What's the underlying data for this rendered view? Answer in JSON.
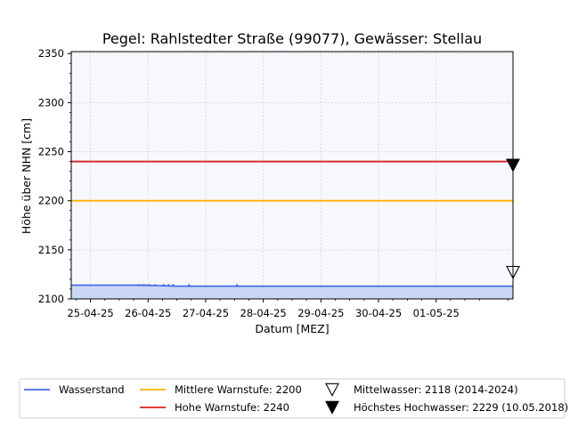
{
  "chart_data": {
    "type": "line",
    "title": "Pegel:  Rahlstedter Straße (99077), Gewässer:  Stellau",
    "xlabel": "Datum [MEZ]",
    "ylabel": "Höhe über NHN [cm]",
    "ylim": [
      2100,
      2352
    ],
    "xlim": [
      "2025-04-24T16:00",
      "2025-05-02T08:00"
    ],
    "yticks": [
      2100,
      2150,
      2200,
      2250,
      2300,
      2350
    ],
    "xticks": [
      {
        "date": "2025-04-25",
        "label": "25-04-25"
      },
      {
        "date": "2025-04-26",
        "label": "26-04-25"
      },
      {
        "date": "2025-04-27",
        "label": "27-04-25"
      },
      {
        "date": "2025-04-28",
        "label": "28-04-25"
      },
      {
        "date": "2025-04-29",
        "label": "29-04-25"
      },
      {
        "date": "2025-04-30",
        "label": "30-04-25"
      },
      {
        "date": "2025-05-01",
        "label": "01-05-25"
      }
    ],
    "grid": true,
    "legend_position": "bottom",
    "series": [
      {
        "name": "Wasserstand",
        "color": "#4169e1",
        "fill": "#c9d6f5",
        "points": [
          [
            "2025-04-24T16:00",
            2114
          ],
          [
            "2025-04-25T12:00",
            2114
          ],
          [
            "2025-04-25T20:00",
            2114
          ],
          [
            "2025-04-26T04:00",
            2113.5
          ],
          [
            "2025-04-26T12:00",
            2113
          ],
          [
            "2025-04-27T00:00",
            2113
          ],
          [
            "2025-04-28T00:00",
            2113
          ],
          [
            "2025-04-29T00:00",
            2113
          ],
          [
            "2025-04-30T00:00",
            2113
          ],
          [
            "2025-05-01T00:00",
            2113
          ],
          [
            "2025-05-02T08:00",
            2113
          ]
        ],
        "markers": [
          [
            "2025-04-25T20:00",
            2114
          ],
          [
            "2025-04-25T21:00",
            2114
          ],
          [
            "2025-04-25T22:00",
            2114
          ],
          [
            "2025-04-25T23:00",
            2114
          ],
          [
            "2025-04-26T00:30",
            2114
          ],
          [
            "2025-04-26T03:00",
            2114
          ],
          [
            "2025-04-26T06:30",
            2114
          ],
          [
            "2025-04-26T08:30",
            2114
          ],
          [
            "2025-04-26T10:30",
            2114
          ],
          [
            "2025-04-26T17:00",
            2114
          ],
          [
            "2025-04-27T13:00",
            2114
          ]
        ]
      },
      {
        "name": "Mittlere Warnstufe: 2200",
        "color": "#ffb000",
        "constant": 2200
      },
      {
        "name": "Hohe Warnstufe: 2240",
        "color": "#d62020",
        "constant": 2240
      }
    ],
    "annotations": [
      {
        "name": "Mittelwasser: 2118 (2014-2024)",
        "marker": "open-triangle-down",
        "x": "2025-05-02T08:00",
        "y": 2118
      },
      {
        "name": "Höchstes Hochwasser: 2229 (10.05.2018)",
        "marker": "filled-triangle-down",
        "x": "2025-05-02T08:00",
        "y": 2229
      }
    ],
    "colors": {
      "plot_background": "#f7f8fd",
      "grid": "#c8c8c8"
    }
  }
}
